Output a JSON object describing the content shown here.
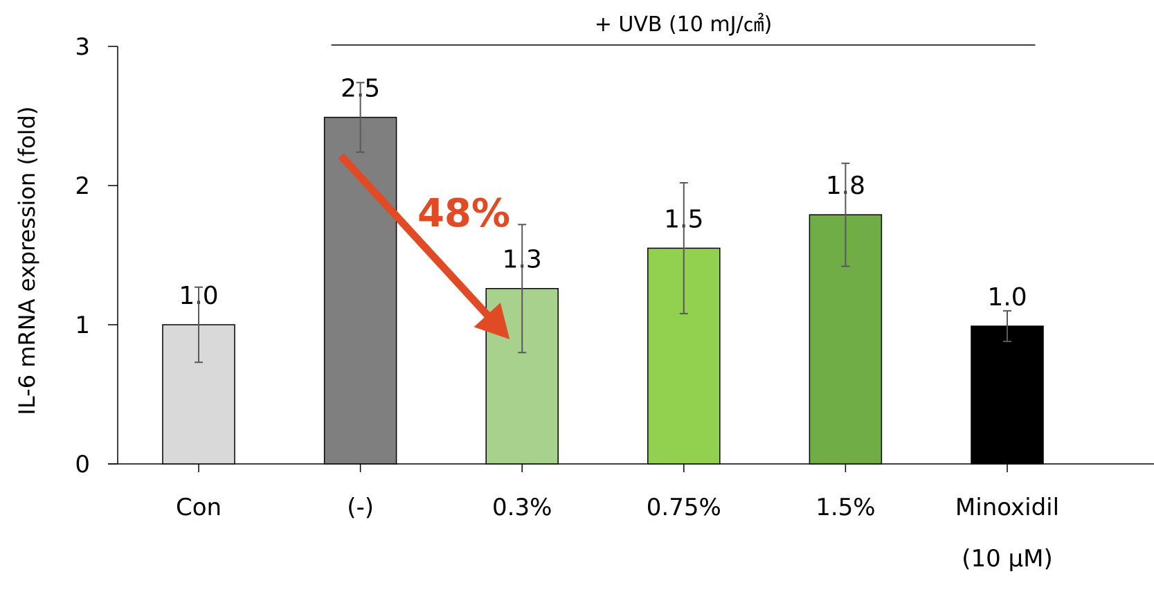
{
  "chart_data": {
    "type": "bar",
    "categories": [
      [
        "Con"
      ],
      [
        "(-)"
      ],
      [
        "0.3%"
      ],
      [
        "0.75%"
      ],
      [
        "1.5%"
      ],
      [
        "Minoxidil",
        "(10 μM)"
      ]
    ],
    "values": [
      1.0,
      2.49,
      1.26,
      1.55,
      1.79,
      0.99
    ],
    "errors": [
      0.27,
      0.25,
      0.46,
      0.47,
      0.37,
      0.11
    ],
    "data_labels": [
      "1.0",
      "2.5",
      "1.3",
      "1.5",
      "1.8",
      "1.0"
    ],
    "bar_colors": [
      "#d9d9d9",
      "#7f7f7f",
      "#a9d18e",
      "#92d050",
      "#70ad47",
      "#000000"
    ],
    "ylabel": "IL-6 mRNA expression (fold)",
    "xlabel": "",
    "ylim": [
      0,
      3
    ],
    "yticks": [
      0,
      1,
      2,
      3
    ],
    "grid": false,
    "bracket_label": "+ UVB (10 mJ/㎠)",
    "bracket_span": [
      "(-)",
      "1.5%"
    ],
    "annotation": {
      "text": "48%",
      "color": "#e04b25",
      "arrow_from": "(-)",
      "arrow_to": "0.3%"
    }
  }
}
